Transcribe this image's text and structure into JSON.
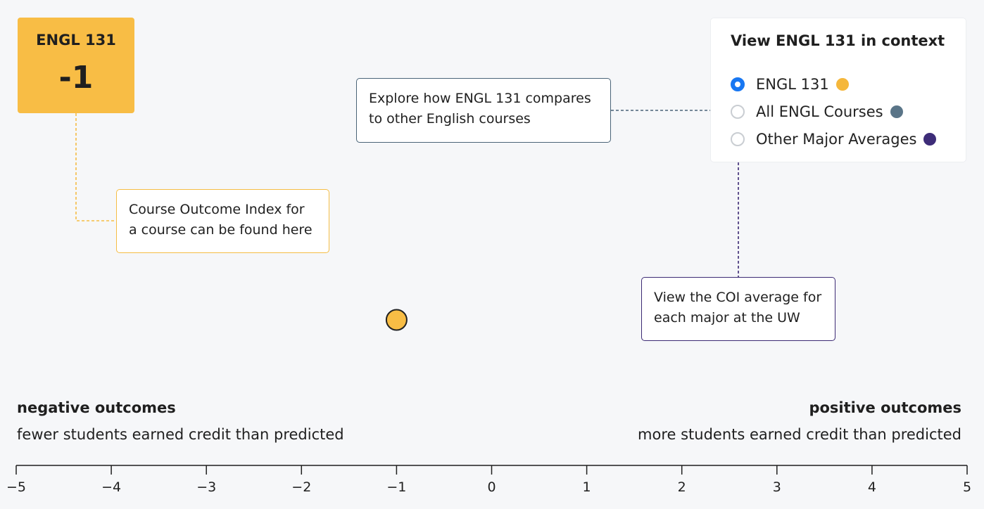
{
  "course_card": {
    "code": "ENGL 131",
    "value": "-1"
  },
  "callouts": {
    "coi": "Course Outcome Index for a course can be found here",
    "compare": "Explore how ENGL 131 compares to other English courses",
    "major": "View the COI average for each major at the UW"
  },
  "context_panel": {
    "title": "View ENGL 131 in context",
    "options": [
      {
        "label": "ENGL 131",
        "checked": true,
        "color": "#f5b73b"
      },
      {
        "label": "All ENGL Courses",
        "checked": false,
        "color": "#5a7588"
      },
      {
        "label": "Other Major Averages",
        "checked": false,
        "color": "#3d2c78"
      }
    ]
  },
  "scale_labels": {
    "negative_title": "negative outcomes",
    "negative_sub": "fewer students earned credit than predicted",
    "positive_title": "positive outcomes",
    "positive_sub": "more students earned credit than predicted"
  },
  "chart_data": {
    "type": "scatter",
    "xlim": [
      -5,
      5
    ],
    "ticks": [
      "−5",
      "−4",
      "−3",
      "−2",
      "−1",
      "0",
      "1",
      "2",
      "3",
      "4",
      "5"
    ],
    "points": [
      {
        "x": -1,
        "color": "#f8bd45"
      }
    ]
  }
}
